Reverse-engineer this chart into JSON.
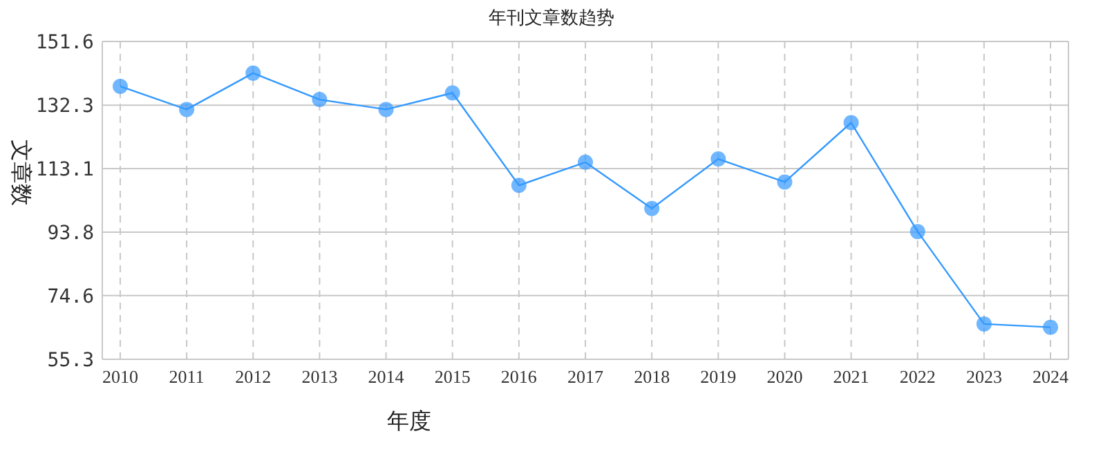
{
  "chart_data": {
    "type": "line",
    "title": "年刊文章数趋势",
    "xlabel": "年度",
    "ylabel": "文章数",
    "categories": [
      "2010",
      "2011",
      "2012",
      "2013",
      "2014",
      "2015",
      "2016",
      "2017",
      "2018",
      "2019",
      "2020",
      "2021",
      "2022",
      "2023",
      "2024"
    ],
    "series": [
      {
        "color": "#3399ff",
        "values": [
          138,
          131,
          142,
          134,
          131,
          136,
          108,
          115,
          101,
          116,
          109,
          127,
          94,
          66,
          65
        ]
      }
    ],
    "ylim": [
      55.3,
      151.6
    ],
    "yticks": [
      55.3,
      74.6,
      93.8,
      113.1,
      132.3,
      151.6
    ],
    "grid": true,
    "marker": "circle",
    "line_style": "solid"
  }
}
